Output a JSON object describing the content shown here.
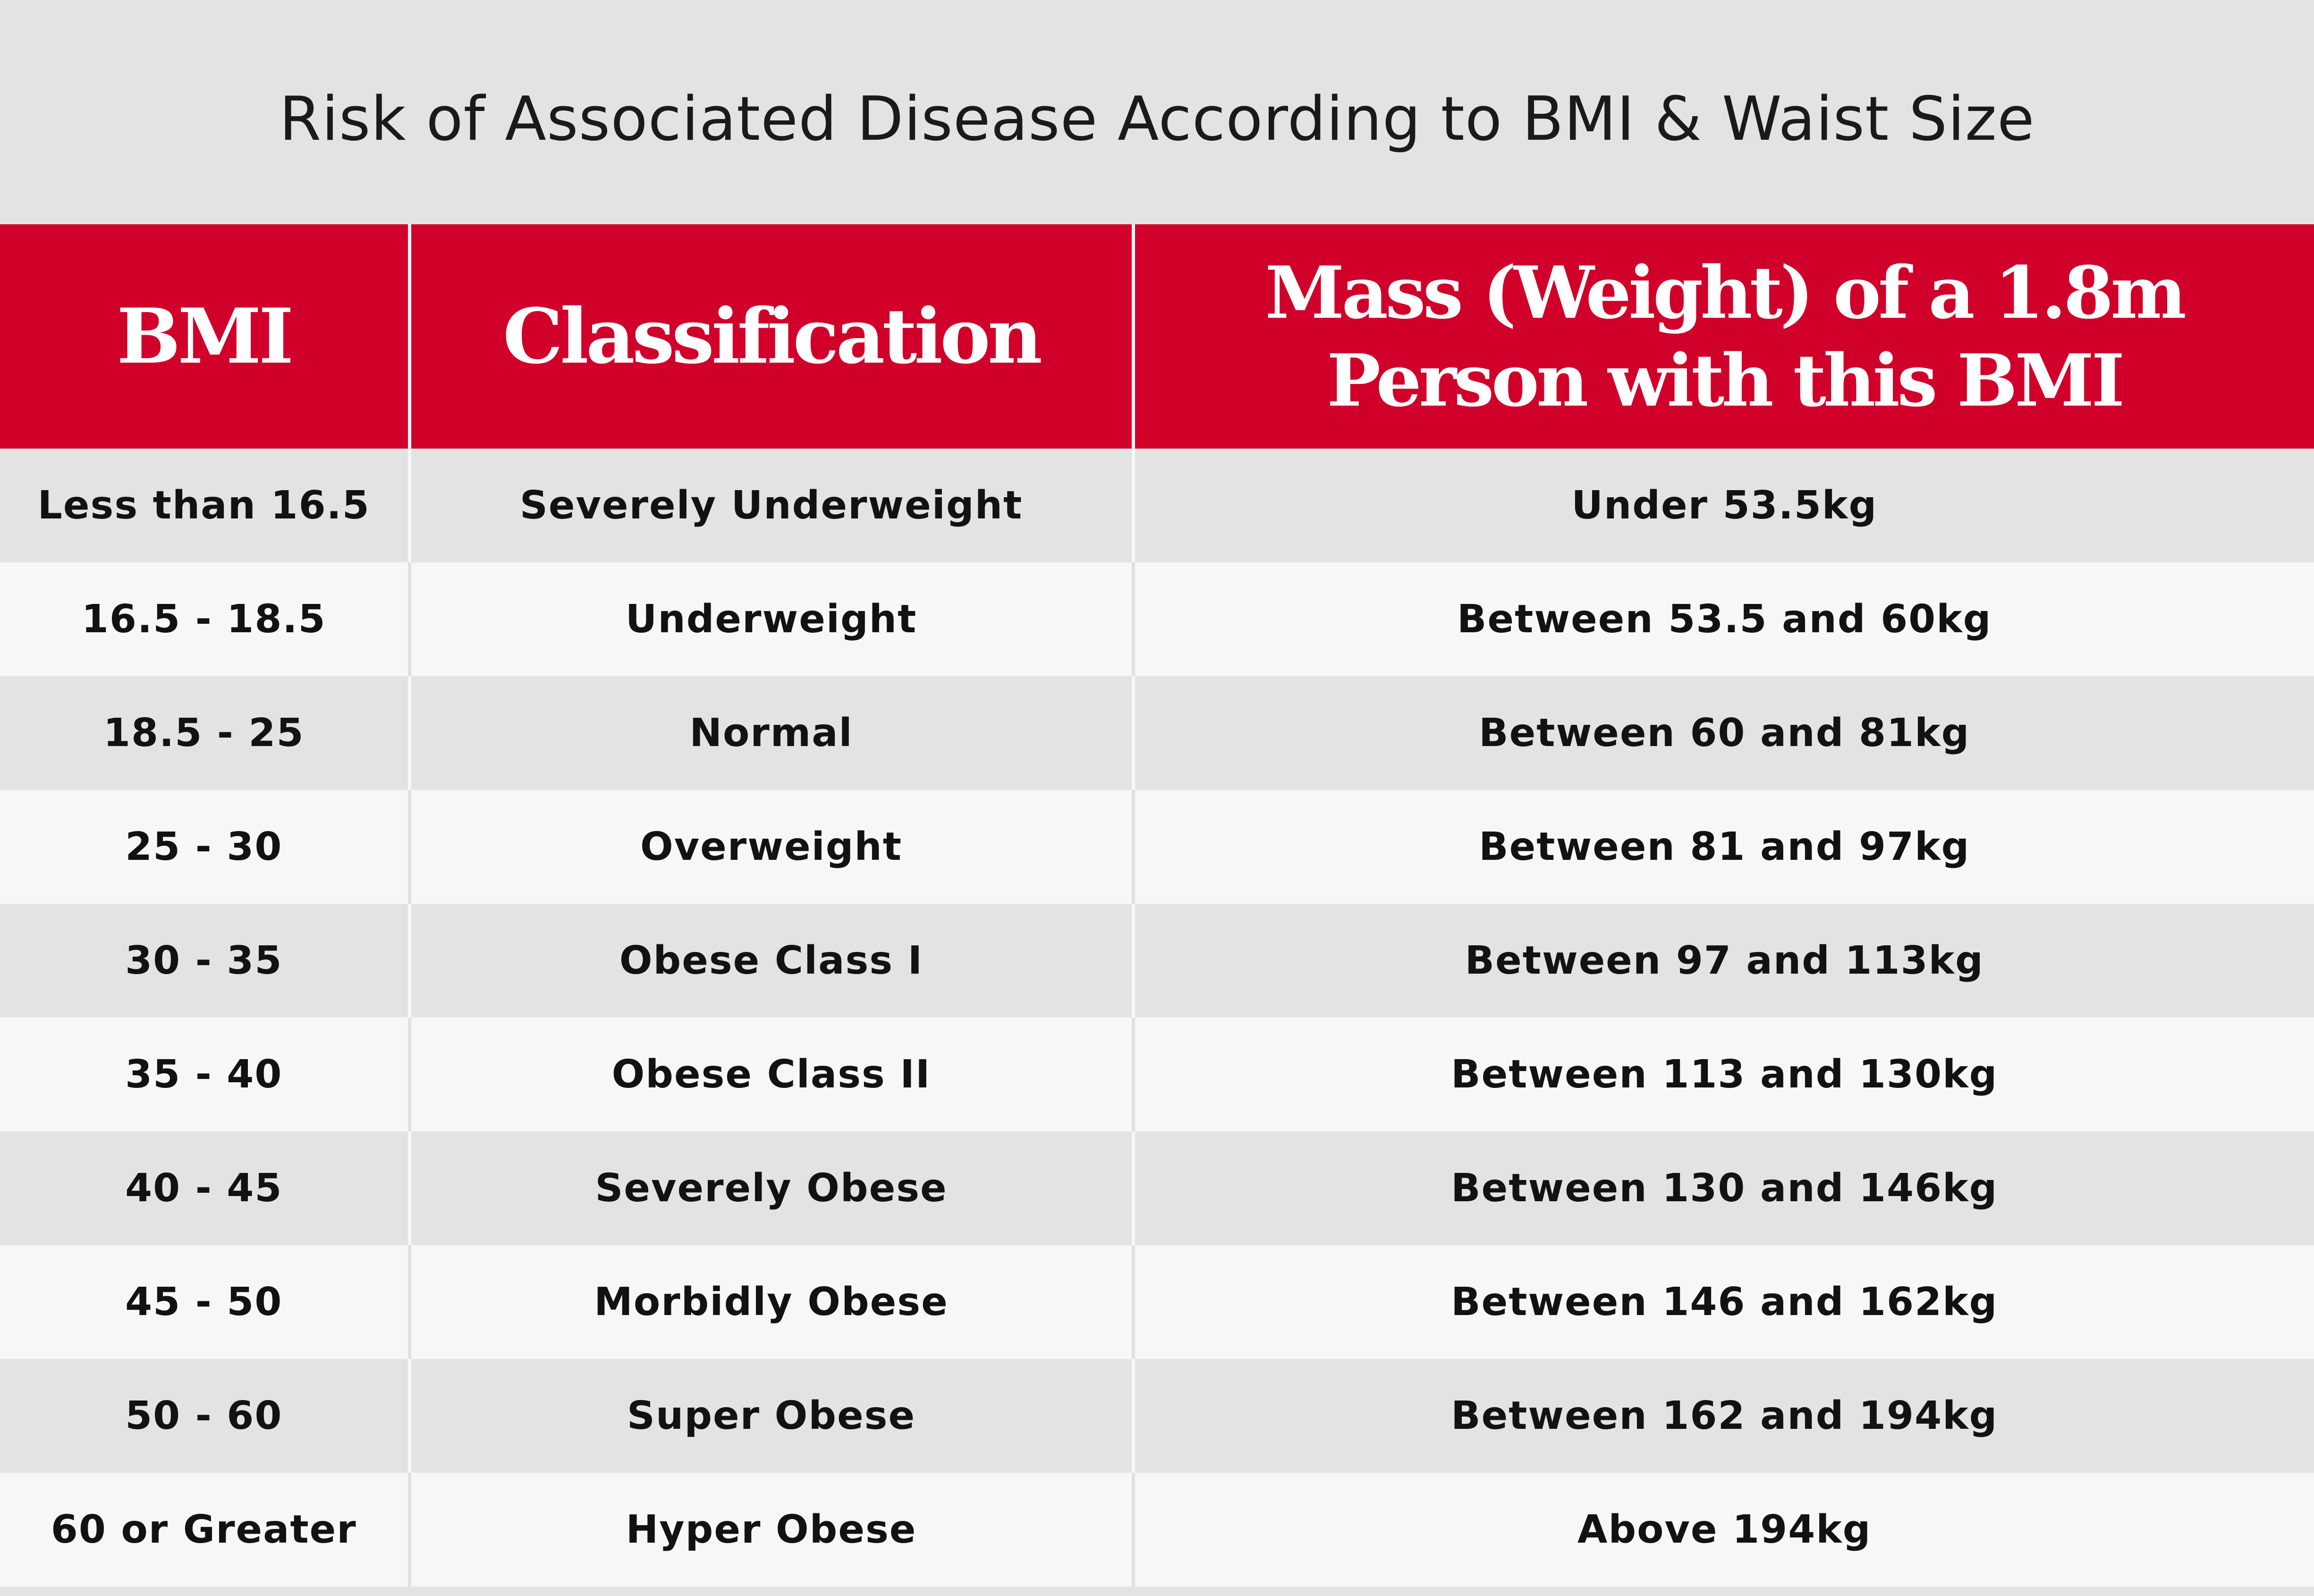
{
  "title": "Risk of Associated Disease According to BMI & Waist Size",
  "colors": {
    "header_background": "#d0002a",
    "header_text": "#ffffff",
    "row_shade_dark": "#e3e3e3",
    "row_shade_light": "#f7f7f6",
    "title_background": "#e3e3e3"
  },
  "table": {
    "headers": {
      "bmi": "BMI",
      "classification": "Classification",
      "mass": "Mass (Weight) of a 1.8m Person with this BMI"
    },
    "rows": [
      {
        "bmi": "Less than 16.5",
        "classification": "Severely Underweight",
        "mass": "Under 53.5kg"
      },
      {
        "bmi": "16.5 - 18.5",
        "classification": "Underweight",
        "mass": "Between 53.5 and 60kg"
      },
      {
        "bmi": "18.5 - 25",
        "classification": "Normal",
        "mass": "Between 60 and 81kg"
      },
      {
        "bmi": "25 - 30",
        "classification": "Overweight",
        "mass": "Between 81 and 97kg"
      },
      {
        "bmi": "30 - 35",
        "classification": "Obese Class I",
        "mass": "Between 97 and 113kg"
      },
      {
        "bmi": "35 - 40",
        "classification": "Obese Class II",
        "mass": "Between 113 and 130kg"
      },
      {
        "bmi": "40 - 45",
        "classification": "Severely Obese",
        "mass": "Between 130 and 146kg"
      },
      {
        "bmi": "45 - 50",
        "classification": "Morbidly Obese",
        "mass": "Between 146 and 162kg"
      },
      {
        "bmi": "50 - 60",
        "classification": "Super Obese",
        "mass": "Between 162 and 194kg"
      },
      {
        "bmi": "60 or Greater",
        "classification": "Hyper Obese",
        "mass": "Above 194kg"
      }
    ]
  }
}
